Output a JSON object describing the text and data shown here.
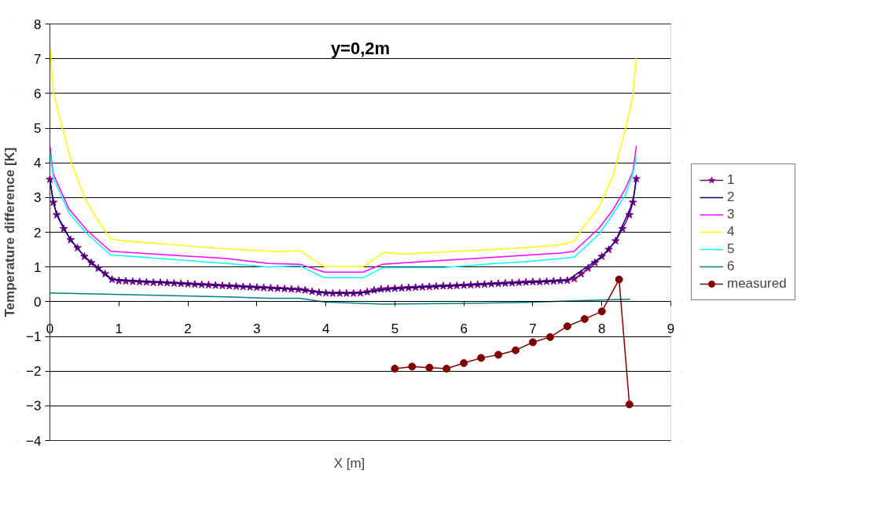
{
  "chart_data": {
    "type": "line",
    "title": "y=0,2m",
    "xlabel": "X [m]",
    "ylabel": "Temperature difference [K]",
    "xlim": [
      0,
      9
    ],
    "ylim": [
      -4,
      8
    ],
    "xticks": [
      0,
      1,
      2,
      3,
      4,
      5,
      6,
      7,
      8,
      9
    ],
    "yticks": [
      -4,
      -3,
      -2,
      -1,
      0,
      1,
      2,
      3,
      4,
      5,
      6,
      7,
      8
    ],
    "grid": "y",
    "legend": "right",
    "marker": "none",
    "series": [
      {
        "name": "1",
        "color": "#800080",
        "marker": "star",
        "x": [
          0,
          0.05,
          0.1,
          0.2,
          0.3,
          0.4,
          0.5,
          0.6,
          0.7,
          0.8,
          0.9,
          1.0,
          1.1,
          1.2,
          1.3,
          1.4,
          1.5,
          1.6,
          1.7,
          1.8,
          1.9,
          2.0,
          2.1,
          2.2,
          2.3,
          2.4,
          2.5,
          2.6,
          2.7,
          2.8,
          2.9,
          3.0,
          3.1,
          3.2,
          3.3,
          3.4,
          3.5,
          3.6,
          3.7,
          3.8,
          3.9,
          4.0,
          4.1,
          4.2,
          4.3,
          4.4,
          4.5,
          4.6,
          4.7,
          4.8,
          4.9,
          5.0,
          5.1,
          5.2,
          5.3,
          5.4,
          5.5,
          5.6,
          5.7,
          5.8,
          5.9,
          6.0,
          6.1,
          6.2,
          6.3,
          6.4,
          6.5,
          6.6,
          6.7,
          6.8,
          6.9,
          7.0,
          7.1,
          7.2,
          7.3,
          7.4,
          7.5,
          7.6,
          7.7,
          7.8,
          7.9,
          8.0,
          8.1,
          8.2,
          8.3,
          8.4,
          8.45,
          8.5
        ],
        "values": [
          3.52,
          2.86,
          2.5,
          2.1,
          1.78,
          1.55,
          1.3,
          1.12,
          0.96,
          0.8,
          0.64,
          0.6,
          0.59,
          0.58,
          0.57,
          0.56,
          0.55,
          0.55,
          0.54,
          0.53,
          0.52,
          0.51,
          0.5,
          0.49,
          0.48,
          0.47,
          0.46,
          0.45,
          0.44,
          0.43,
          0.42,
          0.41,
          0.4,
          0.39,
          0.38,
          0.37,
          0.36,
          0.35,
          0.33,
          0.29,
          0.26,
          0.25,
          0.24,
          0.24,
          0.24,
          0.24,
          0.25,
          0.28,
          0.33,
          0.36,
          0.37,
          0.38,
          0.39,
          0.4,
          0.41,
          0.42,
          0.43,
          0.44,
          0.45,
          0.45,
          0.46,
          0.47,
          0.48,
          0.49,
          0.5,
          0.51,
          0.52,
          0.53,
          0.54,
          0.55,
          0.56,
          0.57,
          0.57,
          0.58,
          0.59,
          0.6,
          0.61,
          0.66,
          0.8,
          0.96,
          1.12,
          1.3,
          1.5,
          1.75,
          2.1,
          2.5,
          2.86,
          3.54
        ]
      },
      {
        "name": "2",
        "color": "#000080",
        "x": [
          0,
          0.05,
          0.1,
          0.3,
          0.5,
          0.9,
          2.0,
          3.6,
          4.0,
          4.5,
          5.0,
          6.0,
          7.5,
          8.0,
          8.2,
          8.45,
          8.5
        ],
        "values": [
          3.52,
          2.86,
          2.5,
          1.78,
          1.3,
          0.64,
          0.51,
          0.35,
          0.25,
          0.25,
          0.38,
          0.47,
          0.61,
          1.3,
          1.75,
          2.86,
          3.54
        ]
      },
      {
        "name": "3",
        "color": "#ff00ff",
        "x": [
          0,
          0.05,
          0.28,
          0.54,
          0.88,
          2.57,
          3.17,
          3.62,
          3.98,
          4.54,
          4.82,
          6.46,
          6.9,
          7.4,
          7.6,
          7.96,
          8.16,
          8.34,
          8.45,
          8.5
        ],
        "values": [
          4.49,
          3.67,
          2.66,
          2.05,
          1.45,
          1.24,
          1.1,
          1.08,
          0.85,
          0.85,
          1.08,
          1.28,
          1.34,
          1.4,
          1.45,
          2.12,
          2.64,
          3.25,
          3.75,
          4.49
        ]
      },
      {
        "name": "4",
        "color": "#ffff00",
        "x": [
          0,
          0.05,
          0.16,
          0.32,
          0.5,
          0.68,
          0.88,
          1.08,
          2.57,
          3.32,
          3.62,
          3.98,
          4.54,
          4.84,
          5.09,
          6.46,
          6.9,
          7.4,
          7.6,
          7.7,
          7.96,
          8.16,
          8.34,
          8.45,
          8.5
        ],
        "values": [
          7.33,
          6.04,
          5.17,
          3.95,
          3.0,
          2.39,
          1.81,
          1.75,
          1.52,
          1.44,
          1.47,
          1.01,
          1.01,
          1.42,
          1.37,
          1.51,
          1.56,
          1.64,
          1.74,
          2.05,
          2.73,
          3.61,
          4.97,
          5.92,
          7.06
        ]
      },
      {
        "name": "5",
        "color": "#00ffff",
        "x": [
          0,
          0.05,
          0.28,
          0.54,
          0.88,
          2.57,
          3.17,
          3.62,
          3.98,
          4.54,
          4.82,
          5.7,
          6.46,
          6.9,
          7.4,
          7.6,
          7.96,
          8.16,
          8.34,
          8.45,
          8.5
        ],
        "values": [
          4.33,
          3.55,
          2.55,
          1.95,
          1.35,
          1.1,
          1.0,
          1.03,
          0.69,
          0.69,
          0.98,
          0.98,
          1.1,
          1.15,
          1.24,
          1.28,
          1.95,
          2.52,
          3.07,
          3.69,
          4.16
        ]
      },
      {
        "name": "6",
        "color": "#008080",
        "x": [
          0,
          2.57,
          3.17,
          3.62,
          3.98,
          4.84,
          6.0,
          6.9,
          7.5,
          8.41
        ],
        "values": [
          0.25,
          0.14,
          0.1,
          0.1,
          -0.01,
          -0.07,
          -0.05,
          -0.02,
          0.02,
          0.07
        ]
      },
      {
        "name": "measured",
        "color": "#800000",
        "marker": "circle",
        "x": [
          5.0,
          5.25,
          5.5,
          5.75,
          6.0,
          6.25,
          6.5,
          6.75,
          7.0,
          7.25,
          7.5,
          7.75,
          8.0,
          8.25,
          8.4
        ],
        "values": [
          -1.93,
          -1.87,
          -1.9,
          -1.93,
          -1.77,
          -1.62,
          -1.53,
          -1.4,
          -1.17,
          -1.02,
          -0.71,
          -0.5,
          -0.28,
          0.64,
          -2.96
        ]
      }
    ]
  }
}
